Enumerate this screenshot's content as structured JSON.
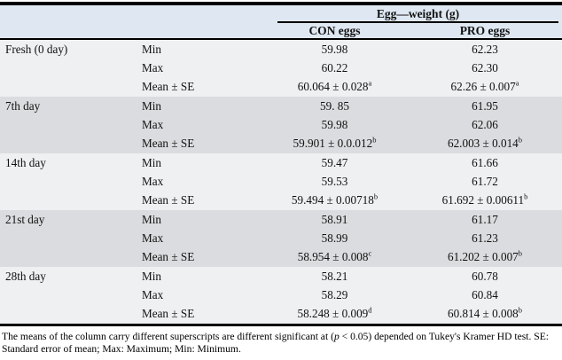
{
  "table": {
    "header": {
      "group_title": "Egg—weight (g)",
      "con_label": "CON eggs",
      "pro_label": "PRO eggs"
    },
    "groups": [
      {
        "day": "Fresh (0 day)",
        "rows": [
          {
            "stat": "Min",
            "con": "59.98",
            "pro": "62.23"
          },
          {
            "stat": "Max",
            "con": "60.22",
            "pro": "62.30"
          },
          {
            "stat": "Mean ± SE",
            "con": "60.064 ± 0.028",
            "con_sup": "a",
            "pro": "62.26 ± 0.007",
            "pro_sup": "a"
          }
        ]
      },
      {
        "day": "7th day",
        "rows": [
          {
            "stat": "Min",
            "con": "59. 85",
            "pro": "61.95"
          },
          {
            "stat": "Max",
            "con": "59.98",
            "pro": "62.06"
          },
          {
            "stat": "Mean ± SE",
            "con": "59.901 ± 0.0.012",
            "con_sup": "b",
            "pro": "62.003 ± 0.014",
            "pro_sup": "b"
          }
        ]
      },
      {
        "day": "14th day",
        "rows": [
          {
            "stat": "Min",
            "con": "59.47",
            "pro": "61.66"
          },
          {
            "stat": "Max",
            "con": "59.53",
            "pro": "61.72"
          },
          {
            "stat": "Mean ± SE",
            "con": "59.494 ± 0.00718",
            "con_sup": "b",
            "pro": "61.692 ± 0.00611",
            "pro_sup": "b"
          }
        ]
      },
      {
        "day": "21st day",
        "rows": [
          {
            "stat": "Min",
            "con": "58.91",
            "pro": "61.17"
          },
          {
            "stat": "Max",
            "con": "58.99",
            "pro": "61.23"
          },
          {
            "stat": "Mean ± SE",
            "con": "58.954 ± 0.008",
            "con_sup": "c",
            "pro": "61.202 ± 0.007",
            "pro_sup": "b"
          }
        ]
      },
      {
        "day": "28th day",
        "rows": [
          {
            "stat": "Min",
            "con": "58.21",
            "pro": "60.78"
          },
          {
            "stat": "Max",
            "con": "58.29",
            "pro": "60.84"
          },
          {
            "stat": "Mean ± SE",
            "con": "58.248 ± 0.009",
            "con_sup": "d",
            "pro": "60.814 ± 0.008",
            "pro_sup": "b"
          }
        ]
      }
    ]
  },
  "footnote": {
    "part1": "The means of the column carry different superscripts are different significant at (",
    "p_symbol": "p",
    "part2": " < 0.05) depended on Tukey's Kramer HD test. SE: Standard error of mean; Max: Maximum; Min: Minimum."
  },
  "colors": {
    "header_bg": "#dfe8f2",
    "row_light": "#eff0f2",
    "row_dark": "#dbdcdf",
    "border": "#000000"
  }
}
